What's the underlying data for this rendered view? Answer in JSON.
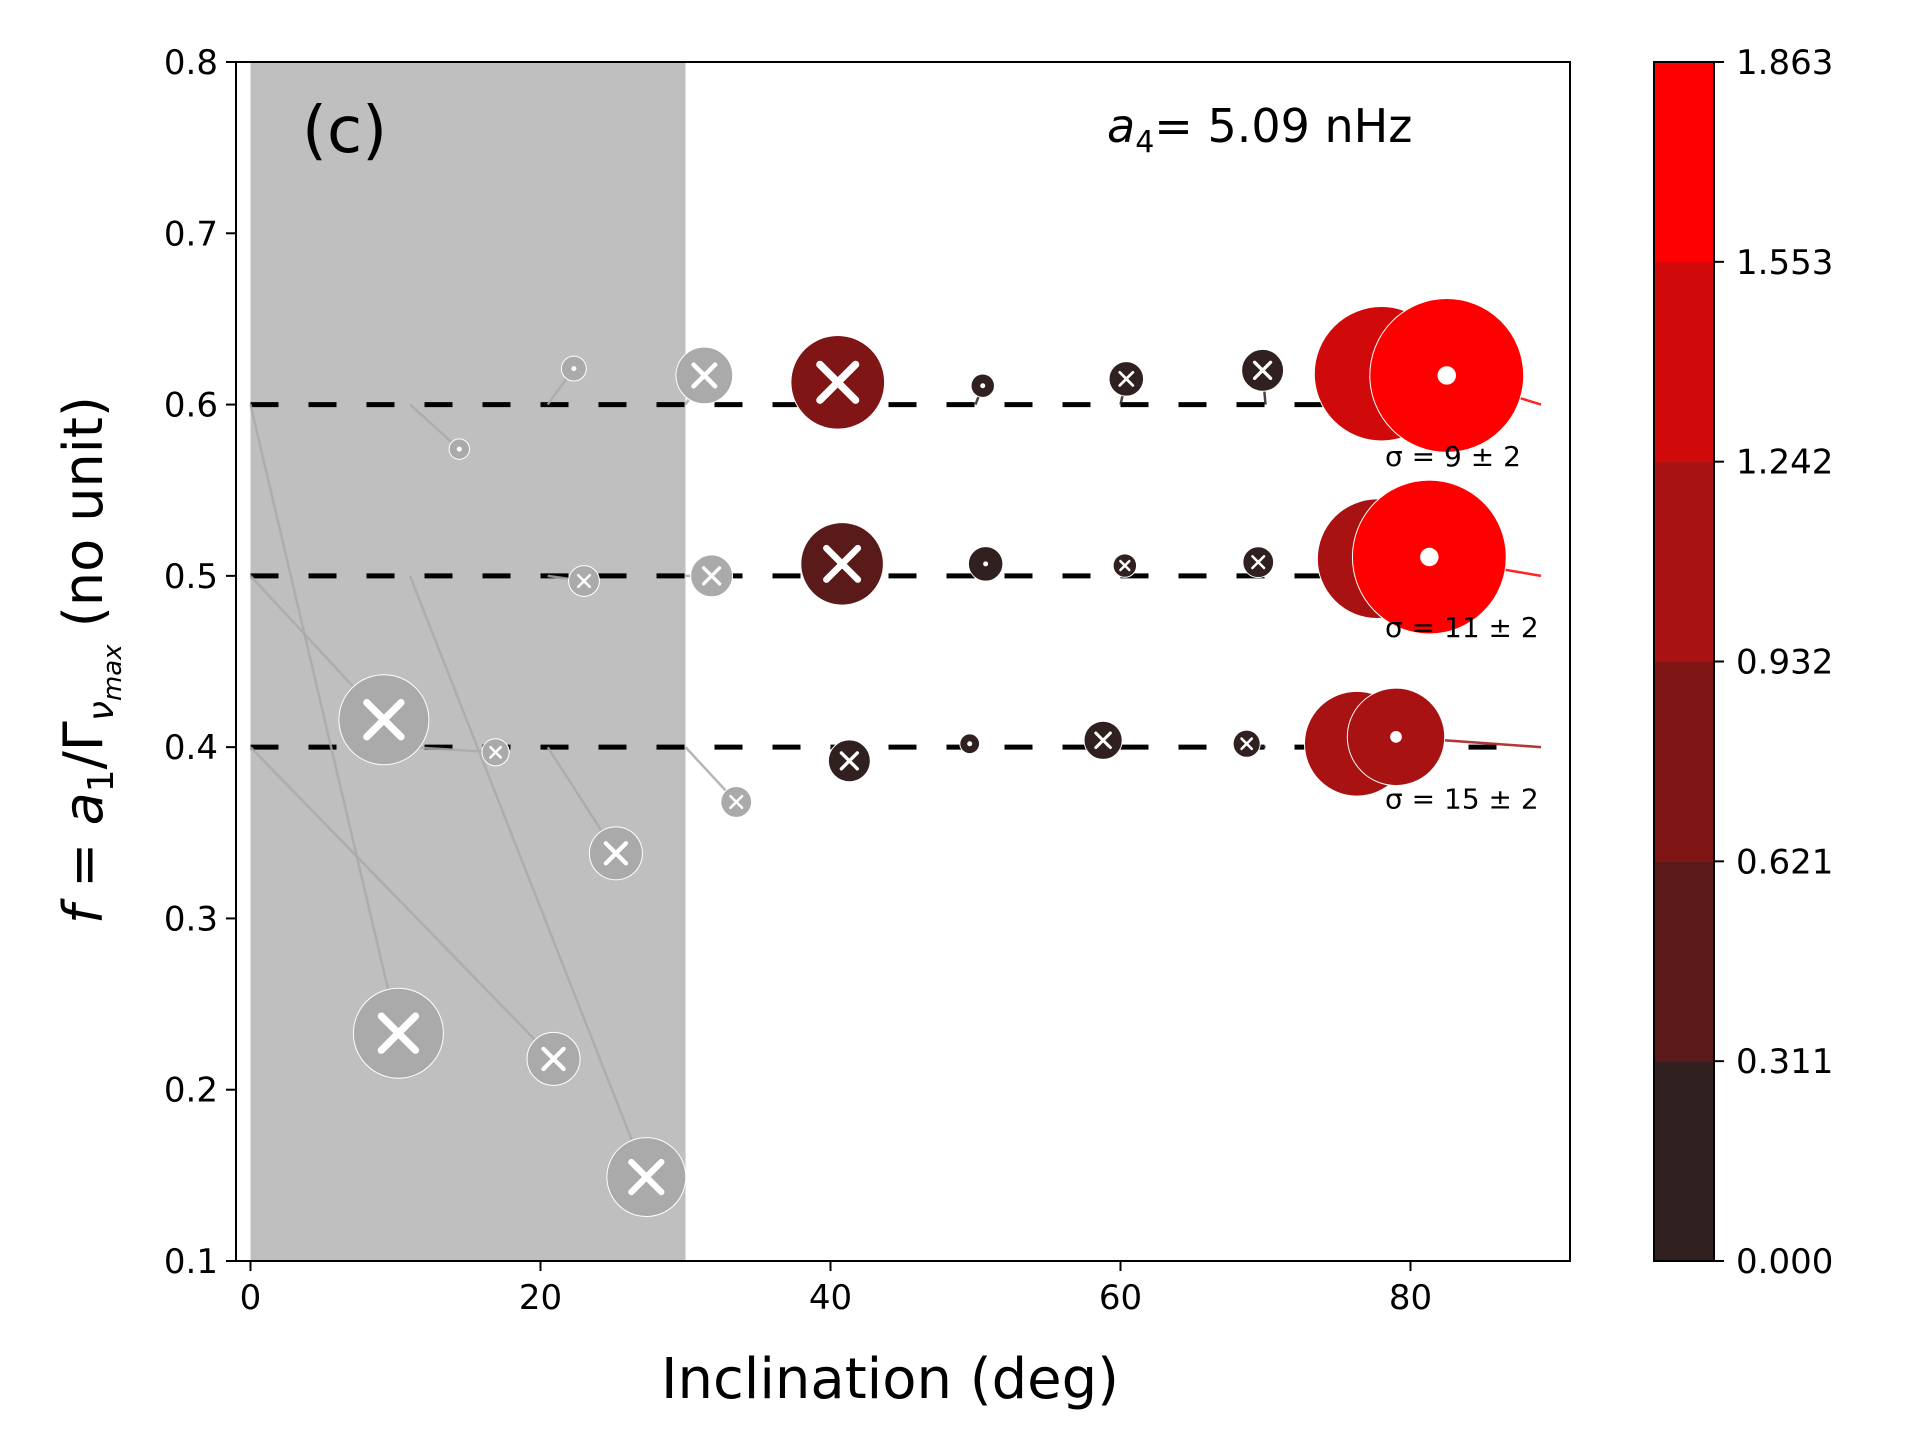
{
  "chart_data": {
    "type": "scatter",
    "panel_label": "(c)",
    "annotation": {
      "prefix": "a",
      "subscript": "4",
      "suffix": "= 5.09 nHz"
    },
    "xlabel": "Inclination (deg)",
    "ylabel": {
      "part1": "f = a",
      "sub1": "1",
      "part2": "/Γ",
      "sub2": "ν",
      "sub3": "max",
      "part3": "  (no unit)"
    },
    "xlim": [
      -1,
      91
    ],
    "ylim": [
      0.1,
      0.8
    ],
    "xticks": [
      0,
      20,
      40,
      60,
      80
    ],
    "yticks": [
      0.1,
      0.2,
      0.3,
      0.4,
      0.5,
      0.6,
      0.7,
      0.8
    ],
    "shaded_region": {
      "x": [
        0,
        30
      ],
      "color": "#bfbfbf"
    },
    "reference_lines": [
      0.6,
      0.5,
      0.4
    ],
    "sigma_labels": [
      {
        "text": "σ = 9 ± 2",
        "y": 0.57
      },
      {
        "text": "σ = 11 ± 2",
        "y": 0.47
      },
      {
        "text": "σ = 15 ± 2",
        "y": 0.37
      }
    ],
    "colorbar": {
      "ticks": [
        "0.000",
        "0.311",
        "0.621",
        "0.932",
        "1.242",
        "1.553",
        "1.863"
      ],
      "colors": [
        "#302020",
        "#5a1a1a",
        "#7f1515",
        "#a81212",
        "#d00a0a",
        "#ff0000"
      ]
    },
    "points": [
      {
        "true_x": 11,
        "true_y": 0.6,
        "x": 14.4,
        "y": 0.574,
        "value": 0.06,
        "color": "#aaaaaa",
        "marker": "o"
      },
      {
        "true_x": 20.5,
        "true_y": 0.6,
        "x": 22.3,
        "y": 0.621,
        "value": 0.12,
        "color": "#aaaaaa",
        "marker": "o"
      },
      {
        "true_x": 30,
        "true_y": 0.6,
        "x": 31.3,
        "y": 0.617,
        "value": 0.55,
        "color": "#aaaaaa",
        "marker": "x"
      },
      {
        "true_x": 40,
        "true_y": 0.6,
        "x": 40.5,
        "y": 0.613,
        "value": 1.05,
        "color": "#7f1515",
        "marker": "x"
      },
      {
        "true_x": 50,
        "true_y": 0.6,
        "x": 50.5,
        "y": 0.611,
        "value": 0.1,
        "color": "#302020",
        "marker": "o"
      },
      {
        "true_x": 60,
        "true_y": 0.6,
        "x": 60.4,
        "y": 0.615,
        "value": 0.25,
        "color": "#302020",
        "marker": "x"
      },
      {
        "true_x": 70,
        "true_y": 0.6,
        "x": 69.8,
        "y": 0.62,
        "value": 0.35,
        "color": "#302020",
        "marker": "x"
      },
      {
        "true_x": 80,
        "true_y": 0.6,
        "x": 78,
        "y": 0.618,
        "value": 1.6,
        "color": "#d00a0a",
        "marker": "o"
      },
      {
        "true_x": 89,
        "true_y": 0.6,
        "x": 82.5,
        "y": 0.617,
        "value": 1.863,
        "color": "#ff0000",
        "marker": "o"
      },
      {
        "true_x": 20.5,
        "true_y": 0.5,
        "x": 23,
        "y": 0.497,
        "value": 0.2,
        "color": "#aaaaaa",
        "marker": "x"
      },
      {
        "true_x": 30,
        "true_y": 0.5,
        "x": 31.8,
        "y": 0.5,
        "value": 0.35,
        "color": "#aaaaaa",
        "marker": "x"
      },
      {
        "true_x": 40,
        "true_y": 0.5,
        "x": 40.8,
        "y": 0.507,
        "value": 0.9,
        "color": "#5a1a1a",
        "marker": "x"
      },
      {
        "true_x": 50,
        "true_y": 0.5,
        "x": 50.7,
        "y": 0.507,
        "value": 0.25,
        "color": "#302020",
        "marker": "o"
      },
      {
        "true_x": 60,
        "true_y": 0.5,
        "x": 60.3,
        "y": 0.506,
        "value": 0.1,
        "color": "#302020",
        "marker": "x"
      },
      {
        "true_x": 70,
        "true_y": 0.5,
        "x": 69.5,
        "y": 0.508,
        "value": 0.2,
        "color": "#302020",
        "marker": "x"
      },
      {
        "true_x": 80,
        "true_y": 0.5,
        "x": 77.7,
        "y": 0.51,
        "value": 1.4,
        "color": "#a81212",
        "marker": "o"
      },
      {
        "true_x": 89,
        "true_y": 0.5,
        "x": 81.3,
        "y": 0.511,
        "value": 1.863,
        "color": "#ff0000",
        "marker": "o"
      },
      {
        "true_x": 0,
        "true_y": 0.5,
        "x": 9.2,
        "y": 0.416,
        "value": 1.0,
        "color": "#aaaaaa",
        "marker": "x"
      },
      {
        "true_x": 0,
        "true_y": 0.6,
        "x": 10.2,
        "y": 0.233,
        "value": 1.0,
        "color": "#aaaaaa",
        "marker": "x"
      },
      {
        "true_x": 0,
        "true_y": 0.4,
        "x": 20.9,
        "y": 0.218,
        "value": 0.5,
        "color": "#aaaaaa",
        "marker": "x"
      },
      {
        "true_x": 11,
        "true_y": 0.5,
        "x": 27.3,
        "y": 0.149,
        "value": 0.85,
        "color": "#aaaaaa",
        "marker": "x"
      },
      {
        "true_x": 11,
        "true_y": 0.4,
        "x": 16.9,
        "y": 0.397,
        "value": 0.15,
        "color": "#aaaaaa",
        "marker": "x"
      },
      {
        "true_x": 20.5,
        "true_y": 0.4,
        "x": 25.2,
        "y": 0.338,
        "value": 0.5,
        "color": "#aaaaaa",
        "marker": "x"
      },
      {
        "true_x": 30,
        "true_y": 0.4,
        "x": 33.5,
        "y": 0.368,
        "value": 0.2,
        "color": "#aaaaaa",
        "marker": "x"
      },
      {
        "true_x": 40,
        "true_y": 0.4,
        "x": 41.3,
        "y": 0.392,
        "value": 0.35,
        "color": "#302020",
        "marker": "x"
      },
      {
        "true_x": 50,
        "true_y": 0.4,
        "x": 49.6,
        "y": 0.402,
        "value": 0.05,
        "color": "#302020",
        "marker": "o"
      },
      {
        "true_x": 60,
        "true_y": 0.4,
        "x": 58.8,
        "y": 0.404,
        "value": 0.3,
        "color": "#302020",
        "marker": "x"
      },
      {
        "true_x": 70,
        "true_y": 0.4,
        "x": 68.7,
        "y": 0.402,
        "value": 0.15,
        "color": "#302020",
        "marker": "x"
      },
      {
        "true_x": 80,
        "true_y": 0.4,
        "x": 76.3,
        "y": 0.402,
        "value": 1.2,
        "color": "#a81212",
        "marker": "o"
      },
      {
        "true_x": 89,
        "true_y": 0.4,
        "x": 79,
        "y": 0.406,
        "value": 1.1,
        "color": "#a81212",
        "marker": "o"
      }
    ]
  }
}
